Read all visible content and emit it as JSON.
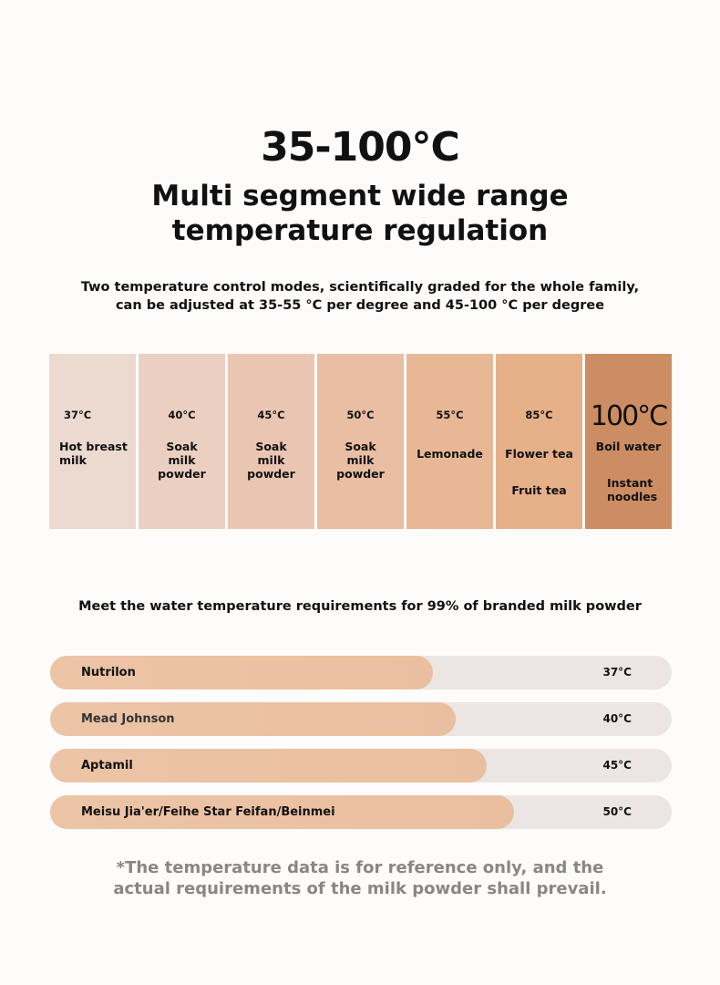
{
  "headline": "35-100°C",
  "subhead_line1": "Multi segment wide range",
  "subhead_line2": "temperature regulation",
  "desc_line1": "Two temperature control modes, scientifically graded for the whole family,",
  "desc_line2": "can be adjusted at 35-55 °C per degree and 45-100 °C per degree",
  "columns": [
    {
      "temp": "37°C",
      "use": "Hot breast milk",
      "use2": "",
      "color": "#ecd9cf"
    },
    {
      "temp": "40°C",
      "use": "Soak milk powder",
      "use2": "",
      "color": "#ebd0c1"
    },
    {
      "temp": "45°C",
      "use": "Soak milk powder",
      "use2": "",
      "color": "#eac6b2"
    },
    {
      "temp": "50°C",
      "use": "Soak milk powder",
      "use2": "",
      "color": "#e9bea3"
    },
    {
      "temp": "55°C",
      "use": "Lemonade",
      "use2": "",
      "color": "#e8b896"
    },
    {
      "temp": "85°C",
      "use": "Flower tea",
      "use2": "Fruit tea",
      "color": "#e6b089"
    },
    {
      "temp": "100°C",
      "use": "Boil water",
      "use2": "Instant noodles",
      "color": "#cd8d62"
    }
  ],
  "meet": "Meet the water temperature requirements for 99% of branded milk powder",
  "brands": [
    {
      "name": "Nutrilon",
      "temp": "37°C",
      "level": 0.616
    },
    {
      "name": "Mead Johnson",
      "temp": "40°C",
      "level": 0.653
    },
    {
      "name": "Aptamil",
      "temp": "45°C",
      "level": 0.703
    },
    {
      "name": "Meisu Jia'er/Feihe Star Feifan/Beinmei",
      "temp": "50°C",
      "level": 0.746
    }
  ],
  "note_line1": "*The temperature data is for reference only, and the",
  "note_line2": "actual requirements of the milk powder shall prevail."
}
